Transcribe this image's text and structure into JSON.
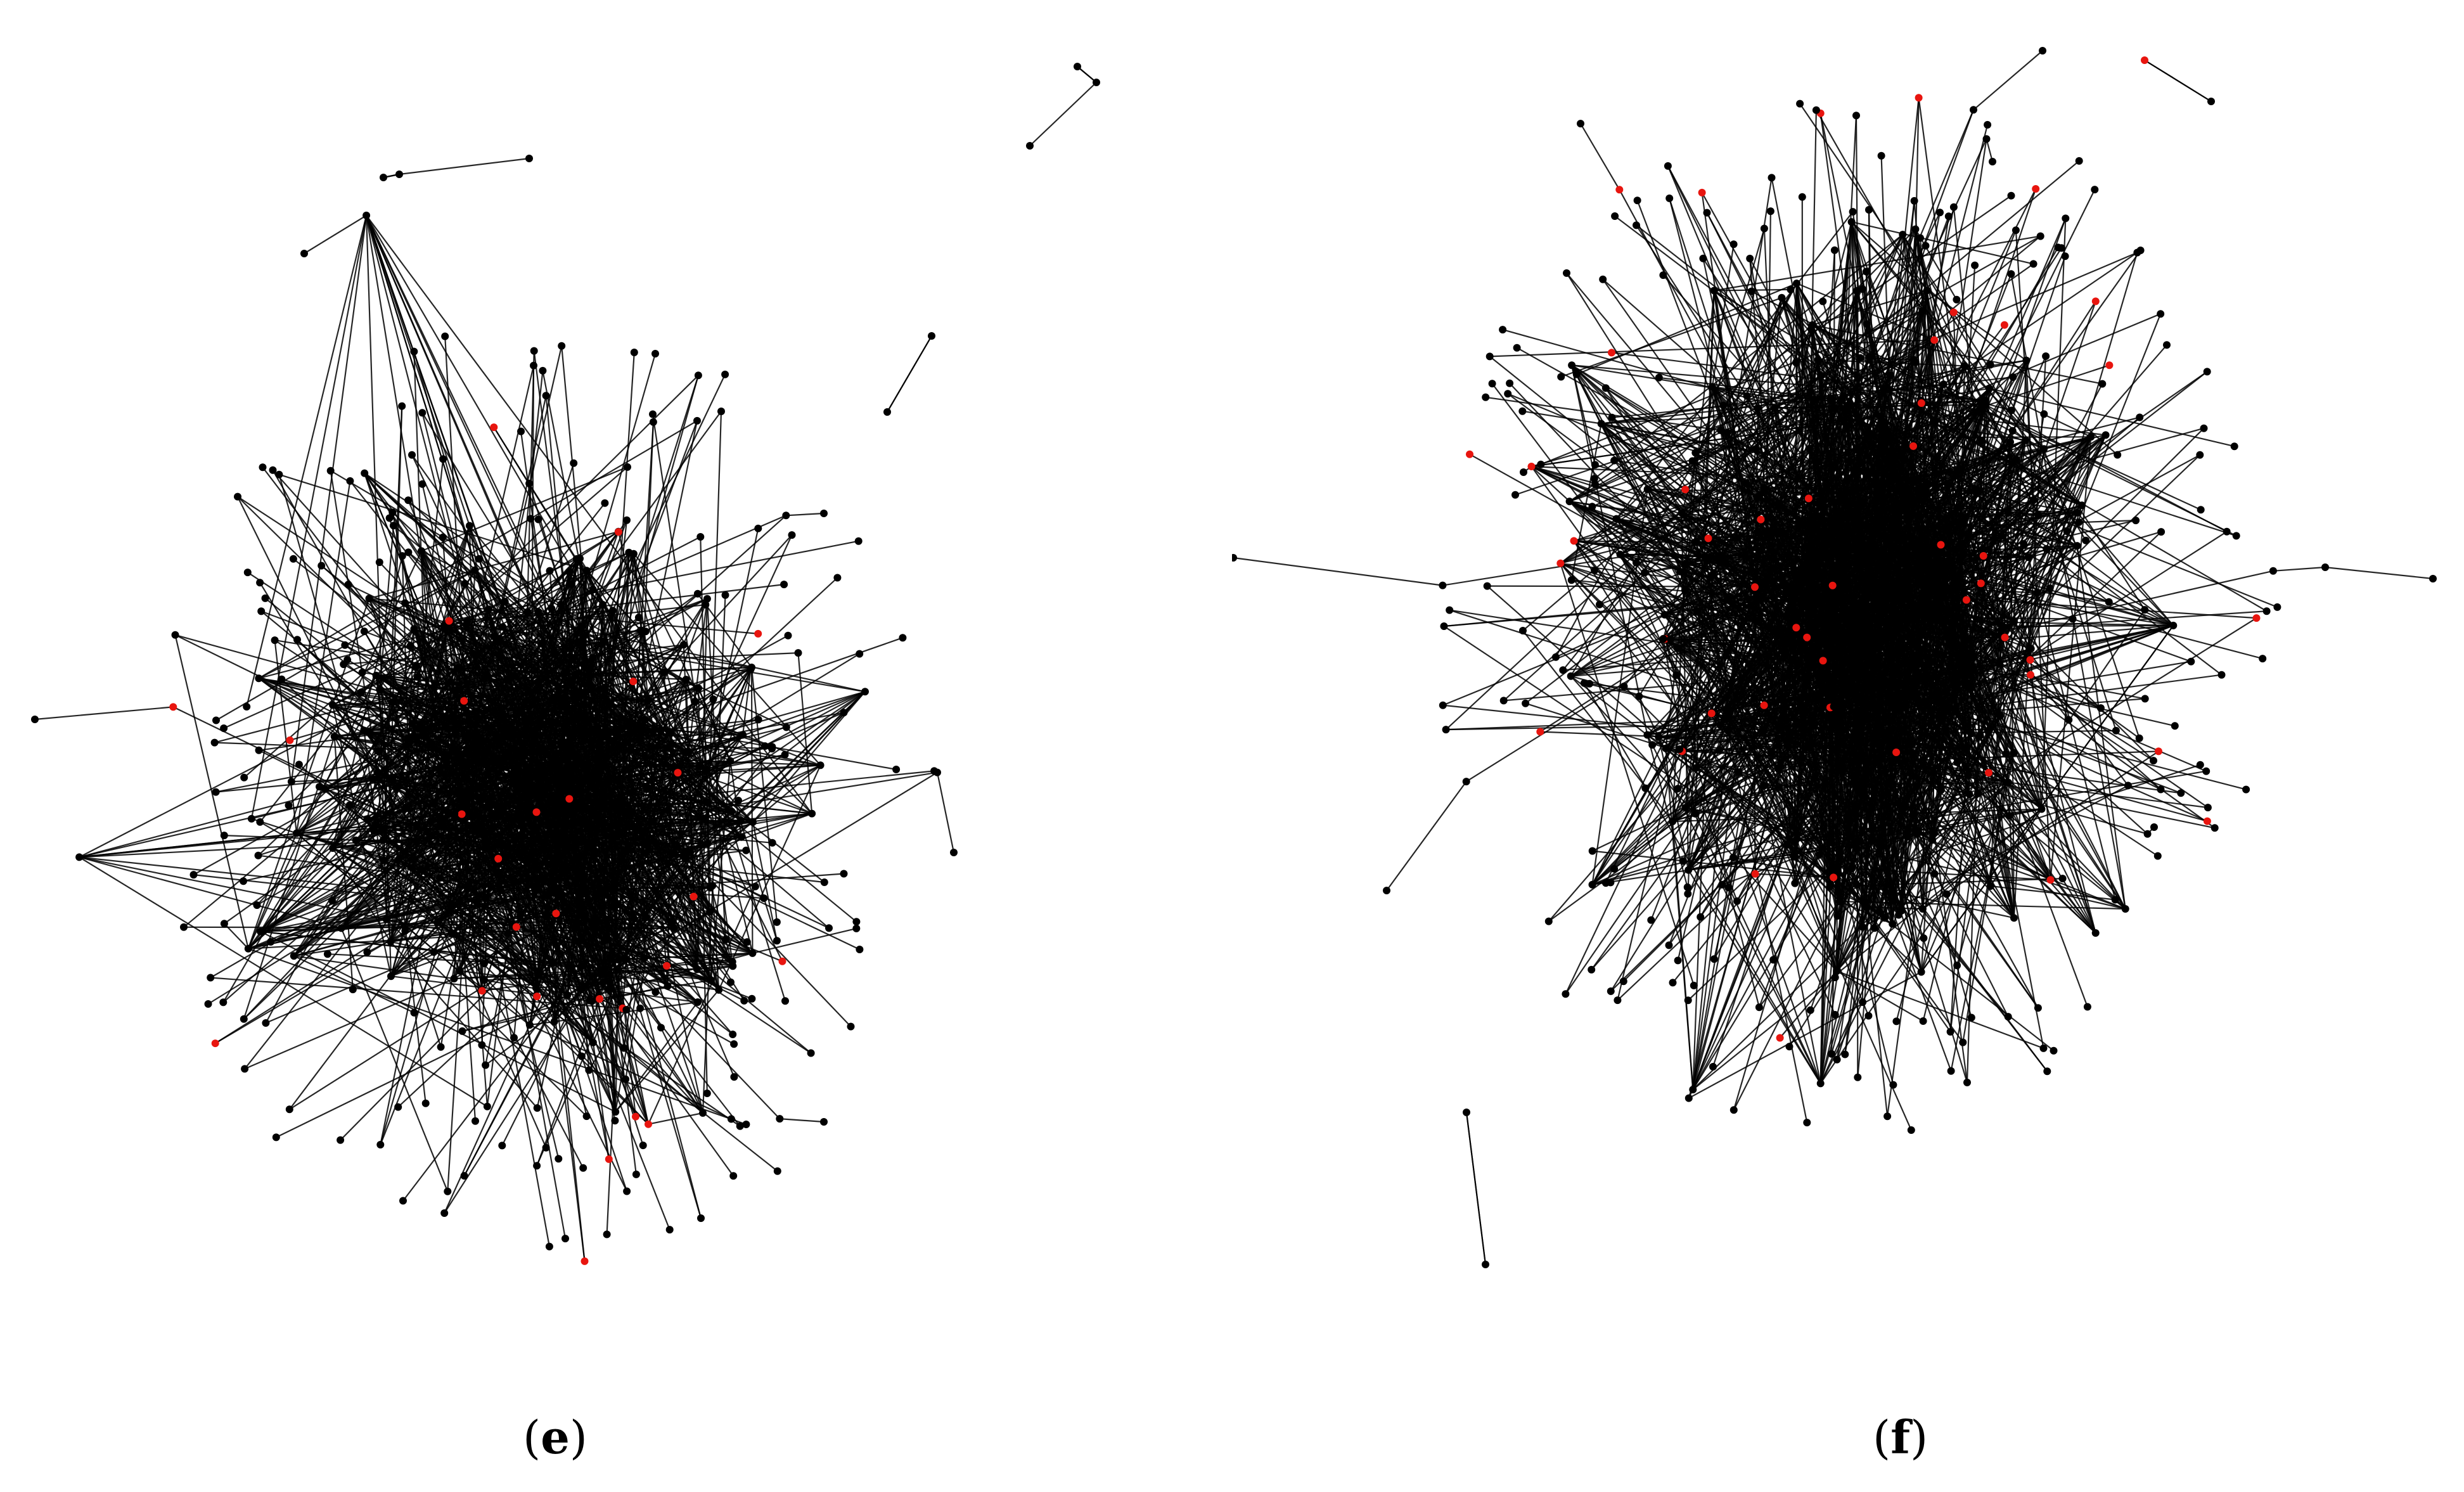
{
  "figure": {
    "panels": [
      {
        "id": "e",
        "caption_open": "(",
        "caption_letter": "e",
        "caption_close": ")"
      },
      {
        "id": "f",
        "caption_open": "(",
        "caption_letter": "f",
        "caption_close": ")"
      }
    ],
    "colors": {
      "background": "#ffffff",
      "edge": "#000000",
      "node_default": "#000000",
      "node_highlight": "#e8150f"
    },
    "description_type": "network-graph-pair"
  }
}
